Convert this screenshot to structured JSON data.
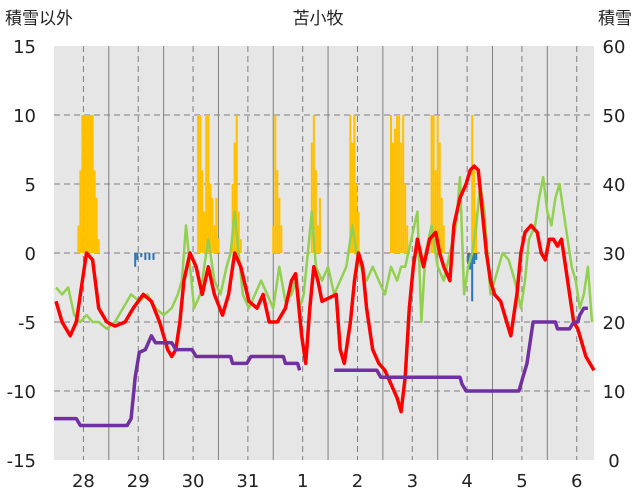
{
  "chart_data": {
    "type": "bar+line",
    "title": "苫小牧",
    "left_axis_label": "積雪以外",
    "right_axis_label": "積雪",
    "left_ylim": [
      -15,
      15
    ],
    "right_ylim": [
      0,
      60
    ],
    "left_ticks": [
      "15",
      "10",
      "5",
      "0",
      "-5",
      "-10",
      "-15"
    ],
    "right_ticks": [
      "60",
      "50",
      "40",
      "30",
      "20",
      "10",
      "0"
    ],
    "x_labels": [
      "28",
      "29",
      "30",
      "31",
      "1",
      "2",
      "3",
      "4",
      "5",
      "6"
    ],
    "grid": true,
    "colors": {
      "plot_bg": "#e6e6e6",
      "grid": "#7f7f7f",
      "yellow_bars": "#ffc000",
      "blue_bars": "#2e75b6",
      "red_line": "#ff0000",
      "green_line": "#92d050",
      "purple_line": "#7030a0"
    },
    "yellow_bars": [
      [
        0.6,
        2
      ],
      [
        0.65,
        6
      ],
      [
        0.7,
        10
      ],
      [
        0.75,
        10
      ],
      [
        0.8,
        10
      ],
      [
        0.85,
        10
      ],
      [
        0.9,
        10
      ],
      [
        0.95,
        10
      ],
      [
        1.0,
        6
      ],
      [
        1.05,
        4
      ],
      [
        1.1,
        1
      ],
      [
        3.55,
        10
      ],
      [
        3.6,
        10
      ],
      [
        3.65,
        6
      ],
      [
        3.7,
        3
      ],
      [
        3.75,
        10
      ],
      [
        3.8,
        10
      ],
      [
        3.85,
        5
      ],
      [
        3.9,
        4
      ],
      [
        3.95,
        2
      ],
      [
        4.0,
        4
      ],
      [
        4.05,
        1
      ],
      [
        4.4,
        5
      ],
      [
        4.45,
        8
      ],
      [
        4.5,
        10
      ],
      [
        4.55,
        3
      ],
      [
        4.6,
        1
      ],
      [
        5.4,
        2
      ],
      [
        5.45,
        10
      ],
      [
        5.5,
        6
      ],
      [
        5.55,
        4
      ],
      [
        5.6,
        2
      ],
      [
        6.35,
        8
      ],
      [
        6.4,
        10
      ],
      [
        6.45,
        6
      ],
      [
        6.5,
        2
      ],
      [
        6.55,
        4
      ],
      [
        7.3,
        10
      ],
      [
        7.35,
        8
      ],
      [
        7.4,
        10
      ],
      [
        7.45,
        5
      ],
      [
        7.5,
        3
      ],
      [
        8.3,
        10
      ],
      [
        8.35,
        8
      ],
      [
        8.4,
        9
      ],
      [
        8.45,
        10
      ],
      [
        8.5,
        10
      ],
      [
        8.55,
        8
      ],
      [
        8.6,
        10
      ],
      [
        8.65,
        5
      ],
      [
        8.7,
        2
      ],
      [
        9.3,
        10
      ],
      [
        9.35,
        10
      ],
      [
        9.4,
        6
      ],
      [
        9.45,
        10
      ],
      [
        9.5,
        8
      ],
      [
        9.55,
        4
      ],
      [
        9.6,
        2
      ],
      [
        10.3,
        10
      ],
      [
        10.35,
        6
      ],
      [
        10.4,
        3
      ]
    ],
    "blue_bars": [
      [
        2.0,
        -1
      ],
      [
        2.05,
        -0.5
      ],
      [
        2.15,
        -0.3
      ],
      [
        2.25,
        -0.5
      ],
      [
        2.35,
        -0.5
      ],
      [
        2.45,
        -0.5
      ],
      [
        8.9,
        -0.2
      ],
      [
        10.2,
        -0.8
      ],
      [
        10.25,
        -1.2
      ],
      [
        10.3,
        -3.5
      ],
      [
        10.35,
        -0.8
      ],
      [
        10.4,
        -0.5
      ]
    ],
    "red_line": [
      [
        0.05,
        -3.5
      ],
      [
        0.2,
        -5
      ],
      [
        0.4,
        -6
      ],
      [
        0.55,
        -5
      ],
      [
        0.7,
        -2
      ],
      [
        0.8,
        0
      ],
      [
        0.95,
        -0.5
      ],
      [
        1.1,
        -4
      ],
      [
        1.3,
        -5
      ],
      [
        1.5,
        -5.3
      ],
      [
        1.75,
        -5
      ],
      [
        1.95,
        -4
      ],
      [
        2.2,
        -3
      ],
      [
        2.4,
        -3.5
      ],
      [
        2.6,
        -5
      ],
      [
        2.8,
        -7
      ],
      [
        2.9,
        -7.5
      ],
      [
        3.0,
        -7
      ],
      [
        3.1,
        -5
      ],
      [
        3.2,
        -2
      ],
      [
        3.35,
        0
      ],
      [
        3.5,
        -1
      ],
      [
        3.65,
        -3
      ],
      [
        3.8,
        -1
      ],
      [
        3.95,
        -3
      ],
      [
        4.15,
        -4.5
      ],
      [
        4.3,
        -3
      ],
      [
        4.45,
        0
      ],
      [
        4.6,
        -1
      ],
      [
        4.8,
        -3.5
      ],
      [
        5.0,
        -4
      ],
      [
        5.15,
        -3
      ],
      [
        5.3,
        -5
      ],
      [
        5.5,
        -5
      ],
      [
        5.7,
        -4
      ],
      [
        5.85,
        -2
      ],
      [
        5.95,
        -1.5
      ],
      [
        6.1,
        -6
      ],
      [
        6.2,
        -8
      ],
      [
        6.3,
        -4
      ],
      [
        6.4,
        -1
      ],
      [
        6.5,
        -2
      ],
      [
        6.6,
        -3.5
      ],
      [
        6.95,
        -3
      ],
      [
        7.05,
        -7
      ],
      [
        7.15,
        -8
      ],
      [
        7.3,
        -5
      ],
      [
        7.4,
        -2
      ],
      [
        7.5,
        0
      ],
      [
        7.6,
        -1
      ],
      [
        7.7,
        -4
      ],
      [
        7.85,
        -7
      ],
      [
        8.0,
        -8
      ],
      [
        8.15,
        -8.5
      ],
      [
        8.3,
        -9.5
      ],
      [
        8.45,
        -10.5
      ],
      [
        8.55,
        -11.5
      ],
      [
        8.65,
        -9
      ],
      [
        8.75,
        -4
      ],
      [
        8.85,
        -1
      ],
      [
        8.95,
        1
      ],
      [
        9.1,
        -1
      ],
      [
        9.25,
        1
      ],
      [
        9.4,
        1.5
      ],
      [
        9.5,
        0
      ],
      [
        9.6,
        -1
      ],
      [
        9.75,
        -2
      ],
      [
        9.85,
        2
      ],
      [
        10.0,
        4
      ],
      [
        10.15,
        5
      ],
      [
        10.25,
        6
      ],
      [
        10.35,
        6.3
      ],
      [
        10.45,
        6
      ],
      [
        10.55,
        3
      ],
      [
        10.65,
        0
      ],
      [
        10.75,
        -2
      ],
      [
        10.85,
        -3
      ],
      [
        11.0,
        -3.5
      ],
      [
        11.15,
        -5
      ],
      [
        11.25,
        -6
      ],
      [
        11.4,
        -3
      ],
      [
        11.5,
        0
      ],
      [
        11.6,
        1.5
      ],
      [
        11.75,
        2
      ],
      [
        11.9,
        1.5
      ],
      [
        12.0,
        0
      ],
      [
        12.1,
        -0.5
      ],
      [
        12.2,
        1
      ],
      [
        12.3,
        1
      ],
      [
        12.4,
        0.5
      ],
      [
        12.5,
        1
      ],
      [
        12.6,
        -1
      ],
      [
        12.7,
        -3
      ],
      [
        12.8,
        -5
      ],
      [
        12.9,
        -5.5
      ],
      [
        13.0,
        -6.5
      ],
      [
        13.1,
        -7.5
      ],
      [
        13.2,
        -8
      ],
      [
        13.3,
        -8.5
      ]
    ],
    "green_line": [
      [
        0.05,
        -2.5
      ],
      [
        0.2,
        -3
      ],
      [
        0.35,
        -2.5
      ],
      [
        0.5,
        -4.5
      ],
      [
        0.65,
        -5
      ],
      [
        0.8,
        -4.5
      ],
      [
        0.95,
        -5
      ],
      [
        1.1,
        -5
      ],
      [
        1.3,
        -5.5
      ],
      [
        1.5,
        -5
      ],
      [
        1.7,
        -4
      ],
      [
        1.9,
        -3
      ],
      [
        2.1,
        -3.5
      ],
      [
        2.3,
        -3
      ],
      [
        2.5,
        -4
      ],
      [
        2.7,
        -4.5
      ],
      [
        2.9,
        -4
      ],
      [
        3.05,
        -3
      ],
      [
        3.15,
        -2
      ],
      [
        3.25,
        2
      ],
      [
        3.35,
        -1
      ],
      [
        3.45,
        -4
      ],
      [
        3.6,
        -3
      ],
      [
        3.7,
        -1
      ],
      [
        3.8,
        1
      ],
      [
        3.95,
        -2
      ],
      [
        4.1,
        -3
      ],
      [
        4.25,
        -1
      ],
      [
        4.35,
        0
      ],
      [
        4.45,
        3
      ],
      [
        4.55,
        0
      ],
      [
        4.65,
        -3
      ],
      [
        4.8,
        -4
      ],
      [
        4.95,
        -3
      ],
      [
        5.1,
        -2
      ],
      [
        5.25,
        -3
      ],
      [
        5.4,
        -4
      ],
      [
        5.55,
        -1
      ],
      [
        5.7,
        -3.5
      ],
      [
        5.85,
        -3
      ],
      [
        5.95,
        -2
      ],
      [
        6.05,
        -4
      ],
      [
        6.15,
        -3
      ],
      [
        6.25,
        0
      ],
      [
        6.35,
        3
      ],
      [
        6.45,
        -1
      ],
      [
        6.6,
        -2
      ],
      [
        6.75,
        -1
      ],
      [
        6.9,
        -3
      ],
      [
        7.05,
        -2
      ],
      [
        7.2,
        -1
      ],
      [
        7.35,
        2
      ],
      [
        7.45,
        0
      ],
      [
        7.55,
        -1
      ],
      [
        7.7,
        -2
      ],
      [
        7.85,
        -1
      ],
      [
        8.0,
        -2
      ],
      [
        8.15,
        -3
      ],
      [
        8.3,
        -1
      ],
      [
        8.45,
        -2
      ],
      [
        8.55,
        -1
      ],
      [
        8.65,
        -1
      ],
      [
        8.8,
        1
      ],
      [
        8.95,
        3
      ],
      [
        9.05,
        -5
      ],
      [
        9.15,
        0
      ],
      [
        9.3,
        2
      ],
      [
        9.45,
        -1
      ],
      [
        9.6,
        -2
      ],
      [
        9.75,
        0
      ],
      [
        9.9,
        2
      ],
      [
        10.0,
        5.5
      ],
      [
        10.1,
        -3
      ],
      [
        10.2,
        -1
      ],
      [
        10.3,
        0
      ],
      [
        10.4,
        2
      ],
      [
        10.5,
        5
      ],
      [
        10.6,
        3
      ],
      [
        10.75,
        -3
      ],
      [
        10.9,
        -1.5
      ],
      [
        11.05,
        0
      ],
      [
        11.2,
        -0.5
      ],
      [
        11.35,
        -2
      ],
      [
        11.5,
        -4
      ],
      [
        11.6,
        -2
      ],
      [
        11.7,
        1
      ],
      [
        11.85,
        2
      ],
      [
        11.95,
        4
      ],
      [
        12.05,
        5.5
      ],
      [
        12.15,
        3
      ],
      [
        12.25,
        2
      ],
      [
        12.35,
        4
      ],
      [
        12.45,
        5
      ],
      [
        12.55,
        3
      ],
      [
        12.65,
        1
      ],
      [
        12.75,
        -1
      ],
      [
        12.85,
        -2
      ],
      [
        12.95,
        -4
      ],
      [
        13.05,
        -3
      ],
      [
        13.15,
        -1
      ],
      [
        13.25,
        -5
      ]
    ],
    "purple_line": [
      [
        0,
        -12
      ],
      [
        0.55,
        -12
      ],
      [
        0.65,
        -12.5
      ],
      [
        1.8,
        -12.5
      ],
      [
        1.9,
        -12
      ],
      [
        2.0,
        -9
      ],
      [
        2.1,
        -7.2
      ],
      [
        2.25,
        -7
      ],
      [
        2.4,
        -6
      ],
      [
        2.5,
        -6.5
      ],
      [
        2.9,
        -6.5
      ],
      [
        3.0,
        -7
      ],
      [
        3.4,
        -7
      ],
      [
        3.5,
        -7.5
      ],
      [
        4.35,
        -7.5
      ],
      [
        4.4,
        -8
      ],
      [
        4.75,
        -8
      ],
      [
        4.85,
        -7.5
      ],
      [
        5.65,
        -7.5
      ],
      [
        5.7,
        -8
      ],
      [
        6.0,
        -8
      ],
      [
        6.05,
        -8.5
      ],
      [
        6.25,
        -8.5
      ],
      [
        6.9,
        -8.5
      ],
      [
        7.95,
        -8.5
      ],
      [
        8.05,
        -9
      ],
      [
        8.6,
        -9
      ],
      [
        8.75,
        -9
      ],
      [
        8.85,
        -9
      ],
      [
        9.0,
        -9
      ],
      [
        9.05,
        -9
      ],
      [
        9.1,
        -9
      ],
      [
        9.15,
        -9
      ],
      [
        10.0,
        -9
      ],
      [
        10.05,
        -9.5
      ],
      [
        10.15,
        -10
      ],
      [
        10.8,
        -10
      ],
      [
        11.45,
        -10
      ],
      [
        11.55,
        -9
      ],
      [
        11.65,
        -8
      ],
      [
        11.7,
        -7
      ],
      [
        11.8,
        -5
      ],
      [
        12.0,
        -5
      ],
      [
        12.2,
        -5
      ],
      [
        12.3,
        -5
      ],
      [
        12.35,
        -5
      ],
      [
        12.4,
        -5.5
      ],
      [
        12.7,
        -5.5
      ],
      [
        12.8,
        -5
      ],
      [
        12.9,
        -5
      ],
      [
        12.95,
        -4.5
      ],
      [
        13.05,
        -4
      ],
      [
        13.15,
        -4
      ]
    ],
    "purple_gap": [
      6.05,
      6.9
    ]
  }
}
